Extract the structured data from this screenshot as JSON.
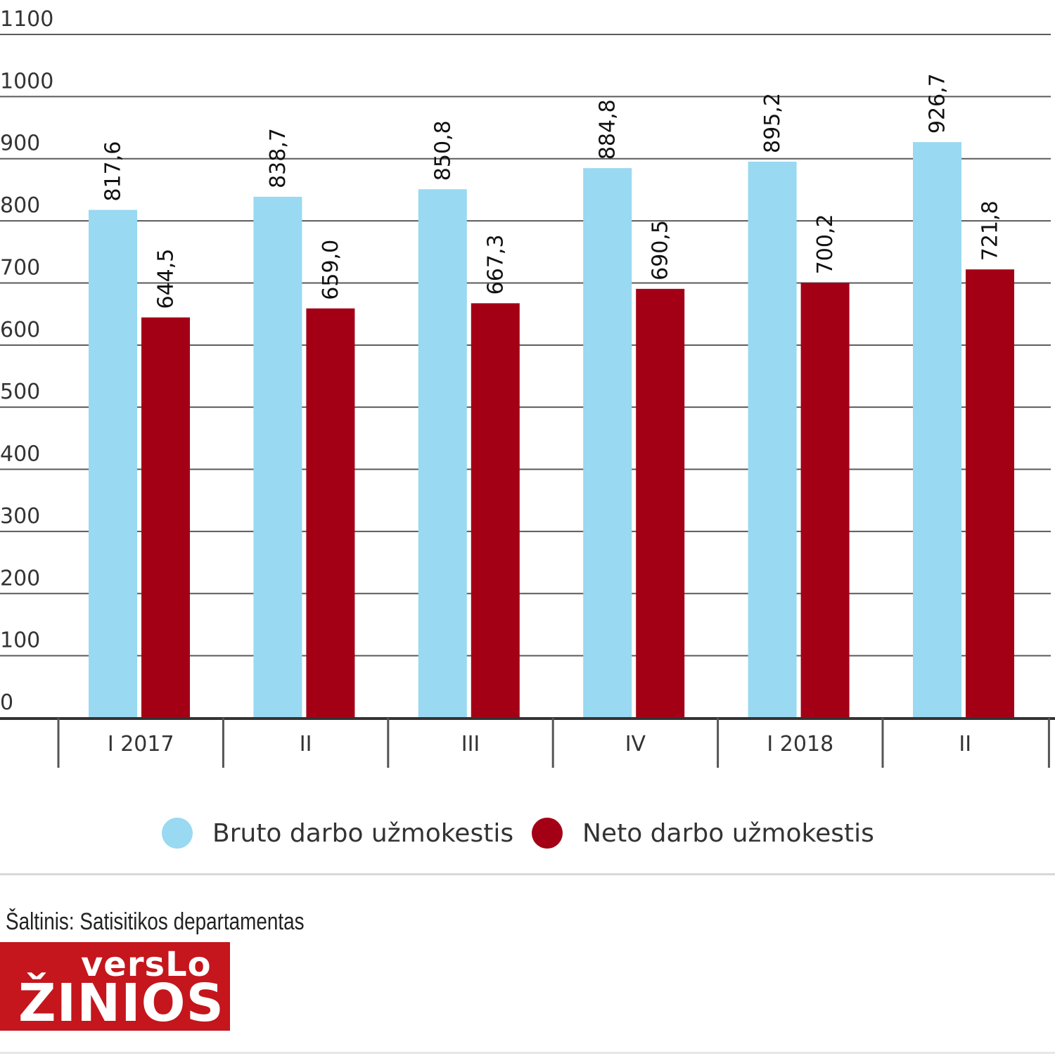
{
  "chart_data": {
    "type": "bar",
    "categories": [
      "I 2017",
      "II",
      "III",
      "IV",
      "I 2018",
      "II"
    ],
    "series": [
      {
        "name": "Bruto darbo užmokestis",
        "values": [
          817.6,
          838.7,
          850.8,
          884.8,
          895.2,
          926.7
        ],
        "color": "#99d9f1"
      },
      {
        "name": "Neto darbo užmokestis",
        "values": [
          644.5,
          659.0,
          667.3,
          690.5,
          700.2,
          721.8
        ],
        "color": "#a30016"
      }
    ],
    "value_labels": [
      [
        "817,6",
        "838,7",
        "850,8",
        "884,8",
        "895,2",
        "926,7"
      ],
      [
        "644,5",
        "659,0",
        "667,3",
        "690,5",
        "700,2",
        "721,8"
      ]
    ],
    "yticks": [
      0,
      100,
      200,
      300,
      400,
      500,
      600,
      700,
      800,
      900,
      1000,
      1100
    ],
    "ylim": [
      0,
      1100
    ],
    "grid": true,
    "legend": "bottom-center"
  },
  "legend": {
    "bruto_label": "Bruto darbo užmokestis",
    "neto_label": "Neto darbo užmokestis"
  },
  "footer": {
    "source": "Šaltinis: Satisitikos departamentas",
    "logo_line1": "versLo",
    "logo_line2": "ŽINIOS"
  }
}
